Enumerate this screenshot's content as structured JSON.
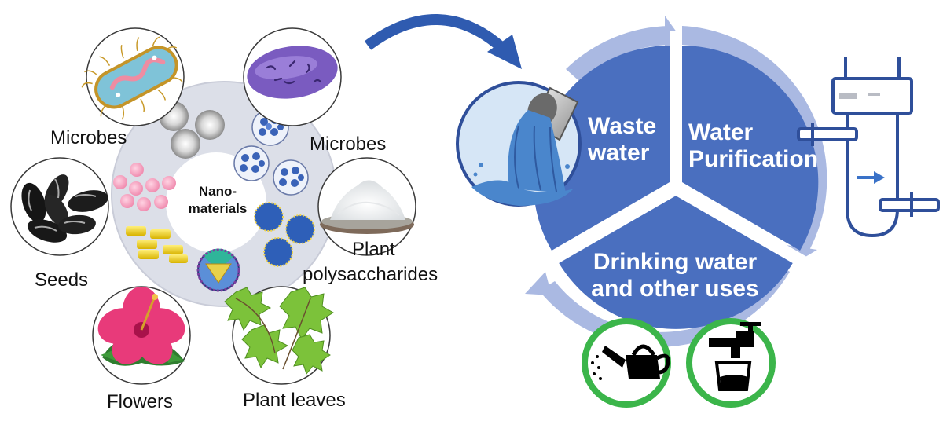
{
  "left_panel": {
    "center_label_line1": "Nano-",
    "center_label_line2": "materials",
    "sources": [
      {
        "label": "Microbes",
        "icon": "bacterium-rod-icon"
      },
      {
        "label": "Microbes",
        "icon": "bacterium-purple-icon"
      },
      {
        "label": "Seeds",
        "icon": "seeds-icon"
      },
      {
        "label": "Plant",
        "label2": "polysaccharides",
        "icon": "powder-dish-icon"
      },
      {
        "label": "Flowers",
        "icon": "hibiscus-flower-icon"
      },
      {
        "label": "Plant leaves",
        "icon": "green-leaves-icon"
      }
    ]
  },
  "cycle": {
    "segments": [
      {
        "line1": "Waste",
        "line2": "water"
      },
      {
        "line1": "Water",
        "line2": "Purification"
      },
      {
        "line1": "Drinking water",
        "line2": "and other uses"
      }
    ],
    "icons": [
      "pipe-outflow-icon",
      "filter-apparatus-icon",
      "watering-can-icon",
      "faucet-cup-icon"
    ]
  },
  "colors": {
    "cycle_blue": "#4a6fbf",
    "arc_light": "#a9b8e0",
    "ring_gray": "#dcdfe8",
    "badge_green": "#3bb54a",
    "curved_arrow": "#2f5bb0"
  }
}
